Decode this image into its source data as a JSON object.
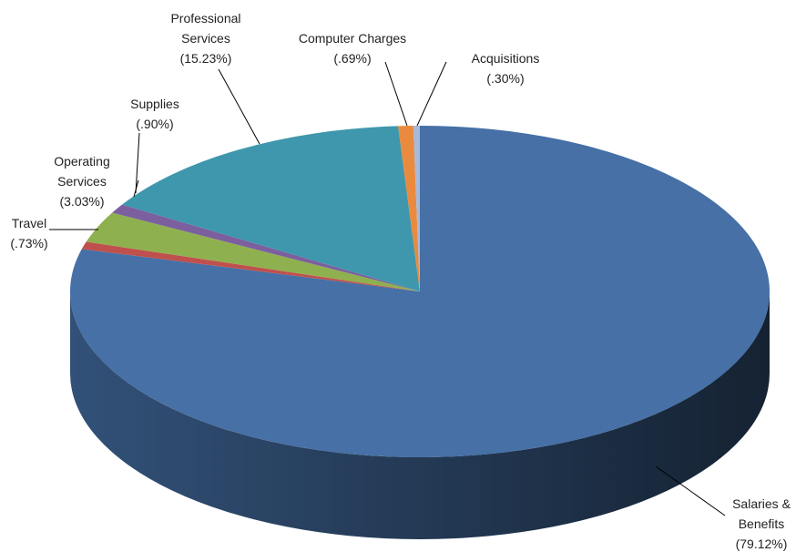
{
  "chart_data": {
    "type": "pie",
    "categories": [
      "Salaries & Benefits",
      "Travel",
      "Operating Services",
      "Supplies",
      "Professional Services",
      "Computer Charges",
      "Acquisitions"
    ],
    "values": [
      79.12,
      0.73,
      3.03,
      0.9,
      15.23,
      0.69,
      0.3
    ],
    "value_labels": [
      "(79.12%)",
      "(.73%)",
      "(3.03%)",
      "(.90%)",
      "(15.23%)",
      "(.69%)",
      "(.30%)"
    ],
    "colors": [
      "#4670a6",
      "#c0504d",
      "#8fb04f",
      "#7b5f9e",
      "#3f97ad",
      "#e98a3e",
      "#a7b9d8"
    ]
  }
}
